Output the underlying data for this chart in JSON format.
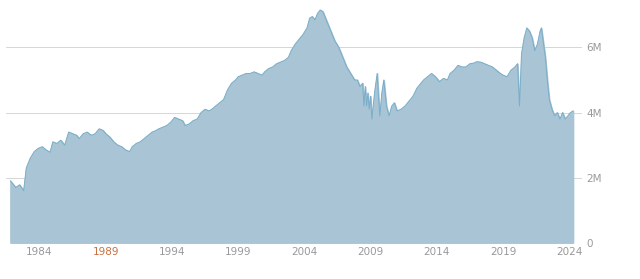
{
  "background_color": "#ffffff",
  "fill_color": "#a8c4d5",
  "line_color": "#7aaec8",
  "grid_color": "#d0d0d0",
  "tick_label_color": "#999999",
  "tick_1989_color": "#c87040",
  "x_tick_labels": [
    "1984",
    "1989",
    "1994",
    "1999",
    "2004",
    "2009",
    "2014",
    "2019",
    "2024"
  ],
  "x_tick_years": [
    1984,
    1989,
    1994,
    1999,
    2004,
    2009,
    2014,
    2019,
    2024
  ],
  "y_tick_labels": [
    "0",
    "2M",
    "4M",
    "6M"
  ],
  "y_tick_values": [
    0,
    2000000,
    4000000,
    6000000
  ],
  "ylim": [
    0,
    7200000
  ],
  "xlim_start": 1981.5,
  "xlim_end": 2025.0,
  "series": [
    [
      1981.8,
      1900000
    ],
    [
      1982.2,
      1700000
    ],
    [
      1982.5,
      1780000
    ],
    [
      1982.8,
      1600000
    ],
    [
      1983.0,
      2300000
    ],
    [
      1983.3,
      2600000
    ],
    [
      1983.6,
      2800000
    ],
    [
      1983.9,
      2900000
    ],
    [
      1984.2,
      2950000
    ],
    [
      1984.5,
      2850000
    ],
    [
      1984.8,
      2780000
    ],
    [
      1985.0,
      3100000
    ],
    [
      1985.3,
      3050000
    ],
    [
      1985.6,
      3150000
    ],
    [
      1985.9,
      3000000
    ],
    [
      1986.2,
      3400000
    ],
    [
      1986.5,
      3350000
    ],
    [
      1986.8,
      3300000
    ],
    [
      1987.0,
      3200000
    ],
    [
      1987.3,
      3350000
    ],
    [
      1987.6,
      3400000
    ],
    [
      1987.9,
      3300000
    ],
    [
      1988.2,
      3350000
    ],
    [
      1988.5,
      3500000
    ],
    [
      1988.8,
      3450000
    ],
    [
      1989.0,
      3350000
    ],
    [
      1989.3,
      3250000
    ],
    [
      1989.6,
      3100000
    ],
    [
      1989.9,
      3000000
    ],
    [
      1990.2,
      2950000
    ],
    [
      1990.5,
      2850000
    ],
    [
      1990.8,
      2800000
    ],
    [
      1991.0,
      2950000
    ],
    [
      1991.3,
      3050000
    ],
    [
      1991.6,
      3100000
    ],
    [
      1991.9,
      3200000
    ],
    [
      1992.2,
      3300000
    ],
    [
      1992.5,
      3400000
    ],
    [
      1992.8,
      3450000
    ],
    [
      1993.0,
      3500000
    ],
    [
      1993.3,
      3550000
    ],
    [
      1993.6,
      3600000
    ],
    [
      1993.9,
      3700000
    ],
    [
      1994.2,
      3850000
    ],
    [
      1994.5,
      3800000
    ],
    [
      1994.8,
      3750000
    ],
    [
      1995.0,
      3600000
    ],
    [
      1995.3,
      3650000
    ],
    [
      1995.6,
      3750000
    ],
    [
      1995.9,
      3800000
    ],
    [
      1996.2,
      4000000
    ],
    [
      1996.5,
      4100000
    ],
    [
      1996.8,
      4050000
    ],
    [
      1997.0,
      4100000
    ],
    [
      1997.3,
      4200000
    ],
    [
      1997.6,
      4300000
    ],
    [
      1997.9,
      4400000
    ],
    [
      1998.2,
      4700000
    ],
    [
      1998.5,
      4900000
    ],
    [
      1998.8,
      5000000
    ],
    [
      1999.0,
      5100000
    ],
    [
      1999.3,
      5150000
    ],
    [
      1999.6,
      5200000
    ],
    [
      1999.9,
      5200000
    ],
    [
      2000.2,
      5250000
    ],
    [
      2000.5,
      5200000
    ],
    [
      2000.8,
      5150000
    ],
    [
      2001.0,
      5250000
    ],
    [
      2001.3,
      5350000
    ],
    [
      2001.6,
      5400000
    ],
    [
      2001.9,
      5500000
    ],
    [
      2002.2,
      5550000
    ],
    [
      2002.5,
      5600000
    ],
    [
      2002.8,
      5700000
    ],
    [
      2003.0,
      5900000
    ],
    [
      2003.3,
      6100000
    ],
    [
      2003.6,
      6250000
    ],
    [
      2003.9,
      6400000
    ],
    [
      2004.2,
      6600000
    ],
    [
      2004.4,
      6900000
    ],
    [
      2004.6,
      6950000
    ],
    [
      2004.8,
      6850000
    ],
    [
      2005.0,
      7050000
    ],
    [
      2005.2,
      7150000
    ],
    [
      2005.4,
      7100000
    ],
    [
      2005.6,
      6900000
    ],
    [
      2005.8,
      6700000
    ],
    [
      2006.0,
      6500000
    ],
    [
      2006.3,
      6200000
    ],
    [
      2006.6,
      6000000
    ],
    [
      2006.9,
      5700000
    ],
    [
      2007.2,
      5400000
    ],
    [
      2007.5,
      5200000
    ],
    [
      2007.8,
      5000000
    ],
    [
      2008.0,
      5000000
    ],
    [
      2008.2,
      4800000
    ],
    [
      2008.4,
      4900000
    ],
    [
      2008.5,
      4200000
    ],
    [
      2008.6,
      4800000
    ],
    [
      2008.7,
      4200000
    ],
    [
      2008.8,
      4600000
    ],
    [
      2008.9,
      4100000
    ],
    [
      2009.0,
      4500000
    ],
    [
      2009.1,
      3800000
    ],
    [
      2009.3,
      4600000
    ],
    [
      2009.5,
      5200000
    ],
    [
      2009.6,
      4500000
    ],
    [
      2009.7,
      3900000
    ],
    [
      2009.85,
      4600000
    ],
    [
      2010.0,
      5000000
    ],
    [
      2010.2,
      4200000
    ],
    [
      2010.4,
      3900000
    ],
    [
      2010.6,
      4200000
    ],
    [
      2010.8,
      4300000
    ],
    [
      2011.0,
      4050000
    ],
    [
      2011.3,
      4100000
    ],
    [
      2011.6,
      4200000
    ],
    [
      2011.9,
      4350000
    ],
    [
      2012.2,
      4500000
    ],
    [
      2012.5,
      4750000
    ],
    [
      2012.8,
      4900000
    ],
    [
      2013.0,
      5000000
    ],
    [
      2013.3,
      5100000
    ],
    [
      2013.6,
      5200000
    ],
    [
      2013.9,
      5100000
    ],
    [
      2014.2,
      4950000
    ],
    [
      2014.5,
      5050000
    ],
    [
      2014.8,
      5000000
    ],
    [
      2015.0,
      5200000
    ],
    [
      2015.3,
      5300000
    ],
    [
      2015.6,
      5450000
    ],
    [
      2015.9,
      5400000
    ],
    [
      2016.2,
      5400000
    ],
    [
      2016.5,
      5500000
    ],
    [
      2016.8,
      5520000
    ],
    [
      2017.0,
      5560000
    ],
    [
      2017.3,
      5550000
    ],
    [
      2017.6,
      5500000
    ],
    [
      2017.9,
      5450000
    ],
    [
      2018.2,
      5400000
    ],
    [
      2018.5,
      5300000
    ],
    [
      2018.8,
      5200000
    ],
    [
      2019.0,
      5150000
    ],
    [
      2019.3,
      5100000
    ],
    [
      2019.6,
      5300000
    ],
    [
      2019.9,
      5400000
    ],
    [
      2020.1,
      5500000
    ],
    [
      2020.25,
      4200000
    ],
    [
      2020.4,
      5800000
    ],
    [
      2020.6,
      6300000
    ],
    [
      2020.8,
      6600000
    ],
    [
      2021.0,
      6500000
    ],
    [
      2021.2,
      6300000
    ],
    [
      2021.4,
      5900000
    ],
    [
      2021.6,
      6100000
    ],
    [
      2021.8,
      6500000
    ],
    [
      2021.9,
      6600000
    ],
    [
      2022.0,
      6300000
    ],
    [
      2022.2,
      5700000
    ],
    [
      2022.35,
      5000000
    ],
    [
      2022.5,
      4400000
    ],
    [
      2022.7,
      4100000
    ],
    [
      2022.9,
      3900000
    ],
    [
      2023.1,
      4000000
    ],
    [
      2023.3,
      3800000
    ],
    [
      2023.5,
      4000000
    ],
    [
      2023.7,
      3800000
    ],
    [
      2023.9,
      3900000
    ],
    [
      2024.1,
      4000000
    ],
    [
      2024.3,
      4050000
    ]
  ]
}
